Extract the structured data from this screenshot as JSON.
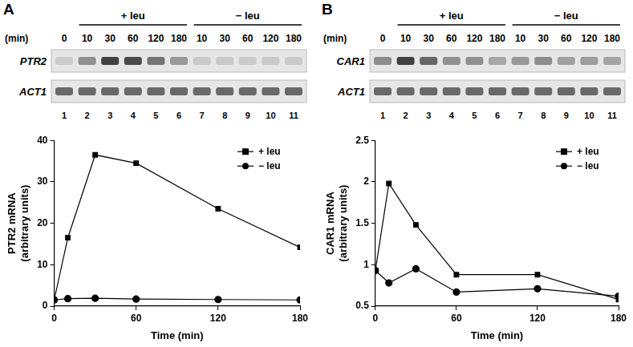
{
  "chart_data": [
    {
      "type": "line",
      "x_label": "Time (min)",
      "y_label": [
        "PTR2 mRNA",
        "(arbitrary units)"
      ],
      "x": [
        0,
        10,
        30,
        60,
        120,
        180
      ],
      "series": [
        {
          "name": "+ leu",
          "color": "#000000",
          "marker": "square",
          "values": [
            1.5,
            16.5,
            36.5,
            34.5,
            23.5,
            14.2
          ]
        },
        {
          "name": "− leu",
          "color": "#000000",
          "marker": "circle",
          "values": [
            1.5,
            1.8,
            1.9,
            1.7,
            1.6,
            1.5
          ]
        }
      ],
      "xlim": [
        0,
        180
      ],
      "xticks": [
        0,
        60,
        120,
        180
      ],
      "ylim": [
        0,
        40
      ],
      "yticks": [
        0,
        10,
        20,
        30,
        40
      ],
      "grid": false,
      "legend": "upper right"
    },
    {
      "type": "line",
      "x_label": "Time (min)",
      "y_label": [
        "CAR1 mRNA",
        "(arbitrary units)"
      ],
      "x": [
        0,
        10,
        30,
        60,
        120,
        180
      ],
      "series": [
        {
          "name": "+ leu",
          "color": "#000000",
          "marker": "square",
          "values": [
            0.93,
            1.98,
            1.48,
            0.88,
            0.88,
            0.58
          ]
        },
        {
          "name": "− leu",
          "color": "#000000",
          "marker": "circle",
          "values": [
            0.93,
            0.78,
            0.95,
            0.67,
            0.71,
            0.62
          ]
        }
      ],
      "xlim": [
        0,
        180
      ],
      "xticks": [
        0,
        60,
        120,
        180
      ],
      "ylim": [
        0.5,
        2.5
      ],
      "yticks": [
        0.5,
        1,
        1.5,
        2,
        2.5
      ],
      "grid": false,
      "legend": "upper right"
    }
  ],
  "blots": [
    {
      "panel": "A",
      "time_label": "(min)",
      "times": [
        0,
        10,
        30,
        60,
        120,
        180,
        10,
        30,
        60,
        120,
        180
      ],
      "lanes": [
        1,
        2,
        3,
        4,
        5,
        6,
        7,
        8,
        9,
        10,
        11
      ],
      "groups": [
        "+ leu",
        "− leu"
      ],
      "rows": [
        "PTR2",
        "ACT1"
      ]
    },
    {
      "panel": "B",
      "time_label": "(min)",
      "times": [
        0,
        10,
        30,
        60,
        120,
        180,
        10,
        30,
        60,
        120,
        180
      ],
      "lanes": [
        1,
        2,
        3,
        4,
        5,
        6,
        7,
        8,
        9,
        10,
        11
      ],
      "groups": [
        "+ leu",
        "− leu"
      ],
      "rows": [
        "CAR1",
        "ACT1"
      ]
    }
  ]
}
